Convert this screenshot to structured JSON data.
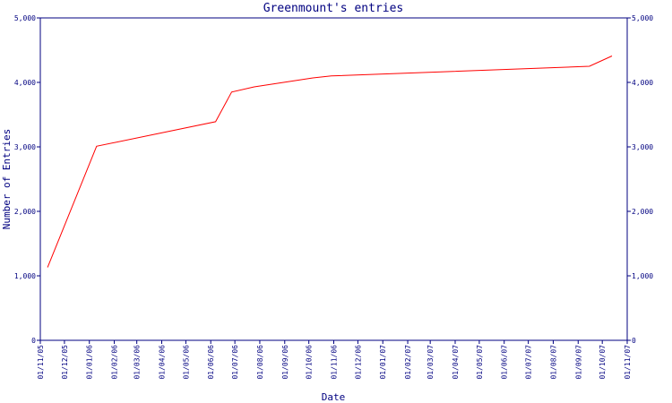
{
  "chart_data": {
    "type": "line",
    "title": "Greenmount's entries",
    "x_label": "Date",
    "y_label": "Number of Entries",
    "color": "#ff0000",
    "axis_color": "#000080",
    "x": [
      "10/11/05",
      "10/01/06",
      "07/06/06",
      "27/06/06",
      "25/07/06",
      "06/10/06",
      "29/10/06",
      "15/09/07",
      "13/10/07"
    ],
    "values": [
      1130,
      3010,
      3390,
      3850,
      3930,
      4070,
      4100,
      4250,
      4410
    ],
    "xlim": [
      "01/11/05",
      "01/11/07"
    ],
    "xticks": [
      "01/11/05",
      "01/12/05",
      "01/01/06",
      "01/02/06",
      "01/03/06",
      "01/04/06",
      "01/05/06",
      "01/06/06",
      "01/07/06",
      "01/08/06",
      "01/09/06",
      "01/10/06",
      "01/11/06",
      "01/12/06",
      "01/01/07",
      "01/02/07",
      "01/03/07",
      "01/04/07",
      "01/05/07",
      "01/06/07",
      "01/07/07",
      "01/08/07",
      "01/09/07",
      "01/10/07",
      "01/11/07"
    ],
    "ylim": [
      0,
      5000
    ],
    "yticks": [
      0,
      {
        "value": 1000,
        "label": "1,000"
      },
      {
        "value": 2000,
        "label": "2,000"
      },
      {
        "value": 3000,
        "label": "3,000"
      },
      {
        "value": 4000,
        "label": "4,000"
      },
      {
        "value": 5000,
        "label": "5,000"
      }
    ]
  }
}
